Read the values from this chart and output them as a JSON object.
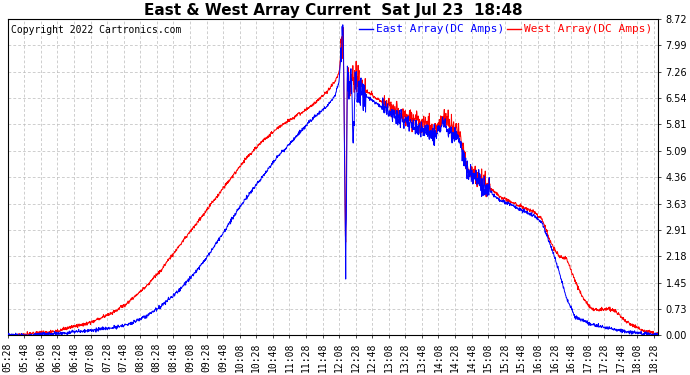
{
  "title": "East & West Array Current  Sat Jul 23  18:48",
  "copyright": "Copyright 2022 Cartronics.com",
  "legend_east": "East Array(DC Amps)",
  "legend_west": "West Array(DC Amps)",
  "east_color": "#0000ff",
  "west_color": "#ff0000",
  "background_color": "#ffffff",
  "grid_color": "#bbbbbb",
  "ylim": [
    0.0,
    8.72
  ],
  "yticks": [
    0.0,
    0.73,
    1.45,
    2.18,
    2.91,
    3.63,
    4.36,
    5.09,
    5.81,
    6.54,
    7.26,
    7.99,
    8.72
  ],
  "title_fontsize": 11,
  "tick_fontsize": 7,
  "legend_fontsize": 8,
  "copyright_fontsize": 7
}
